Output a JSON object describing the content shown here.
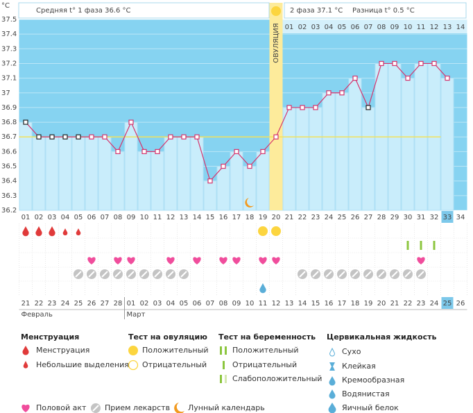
{
  "header": {
    "phase1": "Средняя t° 1 фаза 36.6 °C",
    "phase2": "2 фаза 37.1 °C",
    "difference": "Разница t° 0.5 °C"
  },
  "chart_data": {
    "type": "line",
    "y_unit": "°C",
    "ylim": [
      36.2,
      37.5
    ],
    "yticks": [
      36.2,
      36.3,
      36.4,
      36.5,
      36.6,
      36.7,
      36.8,
      36.9,
      37,
      37.1,
      37.2,
      37.3,
      37.4,
      37.5
    ],
    "categories": [
      "01",
      "02",
      "03",
      "04",
      "05",
      "06",
      "07",
      "08",
      "09",
      "10",
      "11",
      "12",
      "13",
      "14",
      "15",
      "16",
      "17",
      "18",
      "19",
      "20",
      "21",
      "22",
      "23",
      "24",
      "25",
      "26",
      "27",
      "28",
      "29",
      "30",
      "31",
      "32",
      "33",
      "34"
    ],
    "values": [
      36.8,
      36.7,
      36.7,
      36.7,
      36.7,
      36.7,
      36.7,
      36.6,
      36.8,
      36.6,
      36.6,
      36.7,
      36.7,
      36.7,
      36.4,
      36.5,
      36.6,
      36.5,
      36.6,
      36.7,
      36.9,
      36.9,
      36.9,
      37.0,
      37.0,
      37.1,
      36.9,
      37.2,
      37.2,
      37.1,
      37.2,
      37.2,
      37.1,
      null
    ],
    "color": "#d6336c",
    "coverline": 36.7,
    "excluded": [
      "01",
      "02",
      "03",
      "04",
      "05",
      "27"
    ],
    "today": "33",
    "ovulation": {
      "day": "20",
      "label": "ОВУЛЯЦИЯ"
    },
    "phase2_start": "21",
    "phase2_days": [
      "01",
      "02",
      "03",
      "04",
      "05",
      "06",
      "07",
      "08",
      "09",
      "10",
      "11",
      "12",
      "13",
      "14"
    ],
    "menstruation": {
      "heavy": [
        "01",
        "02",
        "03"
      ],
      "light": [
        "04",
        "05"
      ]
    },
    "ovulation_test_positive": [
      "19",
      "20"
    ],
    "pregnancy_test_negative": [
      "30",
      "31",
      "32"
    ],
    "intercourse": [
      "06",
      "08",
      "09",
      "12",
      "14",
      "16",
      "17",
      "19",
      "20",
      "31"
    ],
    "medication": [
      "05",
      "06",
      "07",
      "08",
      "09",
      "10",
      "11",
      "12",
      "13",
      "22",
      "23",
      "24",
      "25",
      "26",
      "27",
      "28",
      "29",
      "30",
      "31"
    ],
    "cervical_watery": [
      "19"
    ],
    "moon": [
      "18"
    ],
    "dates": [
      "21",
      "22",
      "23",
      "24",
      "25",
      "26",
      "27",
      "28",
      "01",
      "02",
      "03",
      "04",
      "05",
      "06",
      "07",
      "08",
      "09",
      "10",
      "11",
      "12",
      "13",
      "14",
      "15",
      "16",
      "17",
      "18",
      "19",
      "20",
      "21",
      "22",
      "23",
      "24",
      "25",
      "26"
    ],
    "weekend": [
      0,
      6,
      7,
      13,
      14,
      20,
      21,
      27,
      28
    ],
    "months": [
      {
        "label": "Февраль",
        "start": 0
      },
      {
        "label": "Март",
        "start": 8
      }
    ]
  },
  "legend": {
    "menstruation": {
      "title": "Менструация",
      "items": [
        "Менструация",
        "Небольшие выделения"
      ]
    },
    "ovulation_test": {
      "title": "Тест на овуляцию",
      "items": [
        "Положительный",
        "Отрицательный"
      ]
    },
    "pregnancy_test": {
      "title": "Тест на беременность",
      "items": [
        "Положительный",
        "Отрицательный",
        "Слабоположительный"
      ]
    },
    "cervical_fluid": {
      "title": "Цервикальная жидкость",
      "items": [
        "Сухо",
        "Клейкая",
        "Кремообразная",
        "Водянистая",
        "Яичный белок"
      ]
    },
    "other": [
      "Половой акт",
      "Прием лекарств",
      "Лунный календарь"
    ]
  }
}
